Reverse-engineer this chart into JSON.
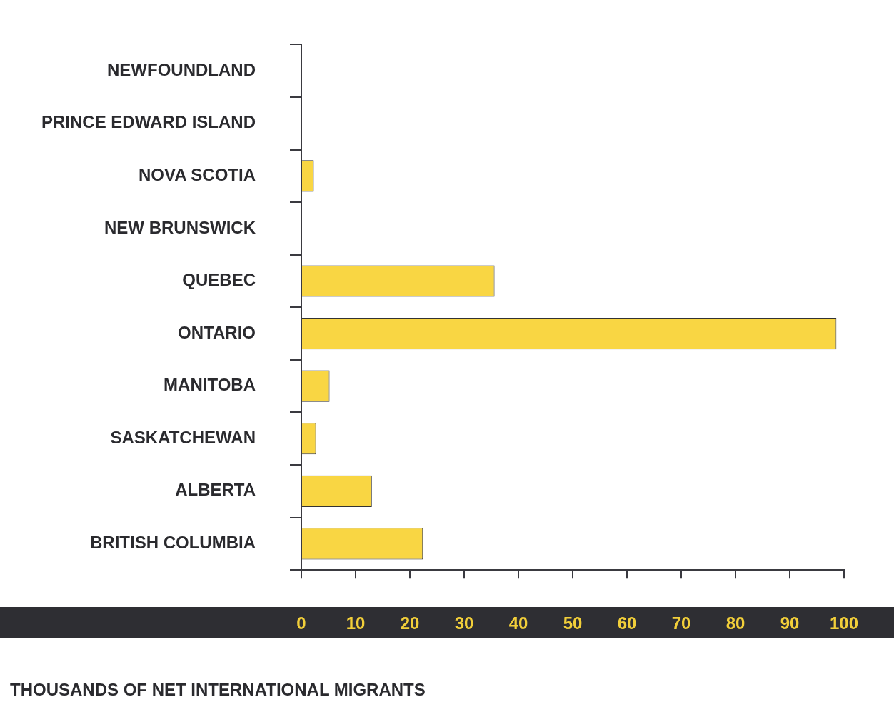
{
  "chart_data": {
    "type": "bar",
    "orientation": "horizontal",
    "xlabel": "THOUSANDS OF NET INTERNATIONAL MIGRANTS",
    "categories": [
      "NEWFOUNDLAND",
      "PRINCE EDWARD ISLAND",
      "NOVA SCOTIA",
      "NEW BRUNSWICK",
      "QUEBEC",
      "ONTARIO",
      "MANITOBA",
      "SASKATCHEWAN",
      "ALBERTA",
      "BRITISH COLUMBIA"
    ],
    "values": [
      0,
      0,
      2.3,
      0,
      35.6,
      98.6,
      5.2,
      2.7,
      13,
      22.4
    ],
    "color": "#f9d643",
    "xlim": [
      0,
      100
    ],
    "xticks": [
      0,
      10,
      20,
      30,
      40,
      50,
      60,
      70,
      80,
      90,
      100
    ]
  }
}
